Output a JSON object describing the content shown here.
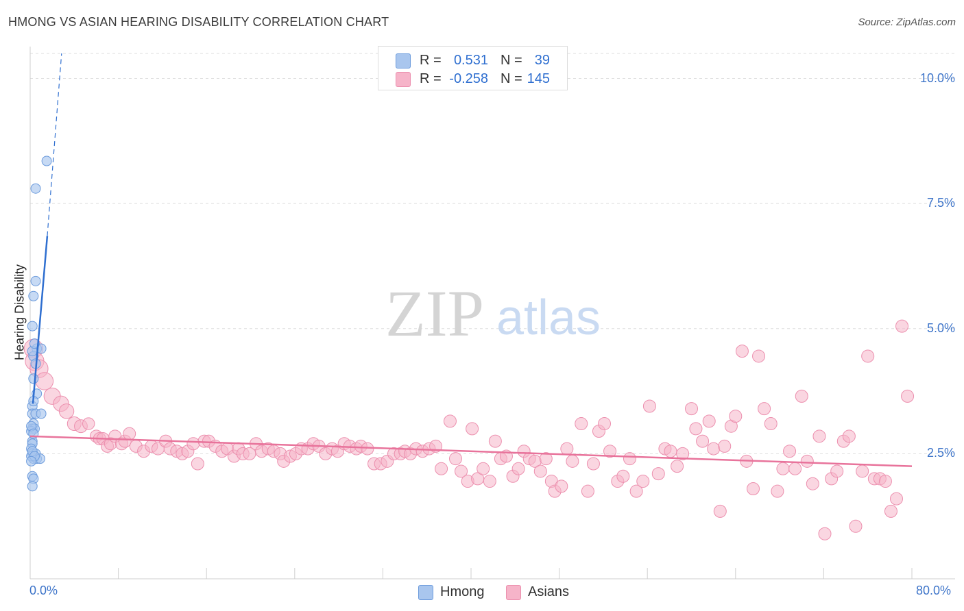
{
  "title": "HMONG VS ASIAN HEARING DISABILITY CORRELATION CHART",
  "source": "Source: ZipAtlas.com",
  "watermark": {
    "zip": "ZIP",
    "atlas": "atlas"
  },
  "legend": {
    "rows": [
      {
        "r_label": "R =",
        "r_value": "0.531",
        "n_label": "N =",
        "n_value": "39"
      },
      {
        "r_label": "R =",
        "r_value": "-0.258",
        "n_label": "N =",
        "n_value": "145"
      }
    ]
  },
  "bottom_legend": {
    "hmong": "Hmong",
    "asians": "Asians"
  },
  "colors": {
    "hmong_fill": "#a9c6ee",
    "hmong_stroke": "#6c9bdc",
    "hmong_line": "#2f6fd0",
    "asian_fill": "#f6b4c9",
    "asian_stroke": "#ec8fae",
    "asian_line": "#e8739b",
    "axis_text": "#3d74c9",
    "grid": "#dedede"
  },
  "chart_data": {
    "type": "scatter",
    "title": "HMONG VS ASIAN HEARING DISABILITY CORRELATION CHART",
    "xlabel": "",
    "ylabel": "Hearing Disability",
    "xlim": [
      0,
      80
    ],
    "ylim": [
      0,
      10.5
    ],
    "x_tick_labels": [
      "0.0%",
      "80.0%"
    ],
    "y_ticks": [
      2.5,
      5.0,
      7.5,
      10.0
    ],
    "y_tick_labels": [
      "2.5%",
      "5.0%",
      "7.5%",
      "10.0%"
    ],
    "legend_position": "top-center",
    "series": [
      {
        "name": "Hmong",
        "r": 0.531,
        "n": 39,
        "trend": {
          "x": [
            0.25,
            1.55
          ],
          "y": [
            3.5,
            6.85
          ],
          "dash_to": [
            2.85,
            10.5
          ]
        },
        "points": [
          [
            1.5,
            8.35
          ],
          [
            0.5,
            7.8
          ],
          [
            0.5,
            5.95
          ],
          [
            0.3,
            5.65
          ],
          [
            0.2,
            5.05
          ],
          [
            0.6,
            4.6
          ],
          [
            1.0,
            4.6
          ],
          [
            0.3,
            4.45
          ],
          [
            0.5,
            4.3
          ],
          [
            0.3,
            4.0
          ],
          [
            0.6,
            3.7
          ],
          [
            0.2,
            3.45
          ],
          [
            0.2,
            3.3
          ],
          [
            0.5,
            3.3
          ],
          [
            1.0,
            3.3
          ],
          [
            0.3,
            3.1
          ],
          [
            0.2,
            3.0
          ],
          [
            0.4,
            3.0
          ],
          [
            0.1,
            2.95
          ],
          [
            0.2,
            2.75
          ],
          [
            0.2,
            2.7
          ],
          [
            0.1,
            2.6
          ],
          [
            0.2,
            2.5
          ],
          [
            0.5,
            2.5
          ],
          [
            0.3,
            2.4
          ],
          [
            0.6,
            2.4
          ],
          [
            0.9,
            2.4
          ],
          [
            0.1,
            2.45
          ],
          [
            0.2,
            2.05
          ],
          [
            0.3,
            2.0
          ],
          [
            0.2,
            1.85
          ],
          [
            0.2,
            2.55
          ],
          [
            0.4,
            2.45
          ],
          [
            0.1,
            3.05
          ],
          [
            0.3,
            2.9
          ],
          [
            0.3,
            3.55
          ],
          [
            0.2,
            4.55
          ],
          [
            0.4,
            4.7
          ],
          [
            0.1,
            2.35
          ]
        ]
      },
      {
        "name": "Asians",
        "r": -0.258,
        "n": 145,
        "trend": {
          "x": [
            0,
            80
          ],
          "y": [
            2.85,
            2.25
          ]
        },
        "points": [
          [
            0.3,
            4.6
          ],
          [
            0.4,
            4.35
          ],
          [
            0.8,
            4.2
          ],
          [
            1.3,
            3.95
          ],
          [
            2.0,
            3.65
          ],
          [
            2.8,
            3.5
          ],
          [
            3.3,
            3.35
          ],
          [
            4.0,
            3.1
          ],
          [
            4.6,
            3.05
          ],
          [
            5.3,
            3.1
          ],
          [
            6.0,
            2.85
          ],
          [
            6.3,
            2.8
          ],
          [
            6.6,
            2.8
          ],
          [
            7.0,
            2.65
          ],
          [
            7.3,
            2.7
          ],
          [
            7.7,
            2.85
          ],
          [
            8.3,
            2.7
          ],
          [
            8.6,
            2.75
          ],
          [
            9.0,
            2.9
          ],
          [
            9.6,
            2.65
          ],
          [
            10.3,
            2.55
          ],
          [
            11.0,
            2.65
          ],
          [
            11.6,
            2.6
          ],
          [
            12.3,
            2.75
          ],
          [
            12.7,
            2.6
          ],
          [
            13.3,
            2.55
          ],
          [
            13.8,
            2.5
          ],
          [
            14.3,
            2.55
          ],
          [
            14.8,
            2.7
          ],
          [
            15.2,
            2.3
          ],
          [
            15.8,
            2.75
          ],
          [
            16.2,
            2.75
          ],
          [
            16.8,
            2.65
          ],
          [
            17.4,
            2.55
          ],
          [
            17.9,
            2.6
          ],
          [
            18.5,
            2.45
          ],
          [
            18.9,
            2.6
          ],
          [
            19.3,
            2.5
          ],
          [
            19.9,
            2.5
          ],
          [
            20.5,
            2.7
          ],
          [
            21.0,
            2.55
          ],
          [
            21.6,
            2.6
          ],
          [
            22.1,
            2.55
          ],
          [
            22.7,
            2.5
          ],
          [
            23.0,
            2.35
          ],
          [
            23.6,
            2.45
          ],
          [
            24.1,
            2.5
          ],
          [
            24.6,
            2.6
          ],
          [
            25.2,
            2.6
          ],
          [
            25.7,
            2.7
          ],
          [
            26.2,
            2.65
          ],
          [
            26.8,
            2.5
          ],
          [
            27.4,
            2.6
          ],
          [
            27.9,
            2.55
          ],
          [
            28.5,
            2.7
          ],
          [
            29.0,
            2.65
          ],
          [
            29.6,
            2.6
          ],
          [
            30.0,
            2.65
          ],
          [
            30.6,
            2.6
          ],
          [
            31.2,
            2.3
          ],
          [
            31.8,
            2.3
          ],
          [
            32.4,
            2.35
          ],
          [
            33.0,
            2.5
          ],
          [
            33.6,
            2.5
          ],
          [
            34.0,
            2.55
          ],
          [
            34.5,
            2.5
          ],
          [
            35.0,
            2.6
          ],
          [
            35.6,
            2.55
          ],
          [
            36.2,
            2.6
          ],
          [
            36.8,
            2.65
          ],
          [
            37.3,
            2.2
          ],
          [
            38.1,
            3.15
          ],
          [
            38.6,
            2.4
          ],
          [
            39.1,
            2.15
          ],
          [
            39.7,
            1.95
          ],
          [
            40.1,
            3.0
          ],
          [
            40.6,
            2.0
          ],
          [
            41.1,
            2.2
          ],
          [
            41.7,
            1.95
          ],
          [
            42.2,
            2.75
          ],
          [
            42.7,
            2.4
          ],
          [
            43.2,
            2.45
          ],
          [
            43.8,
            2.05
          ],
          [
            44.3,
            2.2
          ],
          [
            44.8,
            2.55
          ],
          [
            45.3,
            2.4
          ],
          [
            45.8,
            2.35
          ],
          [
            46.3,
            2.15
          ],
          [
            46.8,
            2.4
          ],
          [
            47.3,
            1.95
          ],
          [
            47.6,
            1.75
          ],
          [
            48.2,
            1.85
          ],
          [
            48.7,
            2.6
          ],
          [
            49.2,
            2.35
          ],
          [
            50.0,
            3.1
          ],
          [
            50.6,
            1.75
          ],
          [
            51.1,
            2.3
          ],
          [
            51.6,
            2.95
          ],
          [
            52.1,
            3.1
          ],
          [
            52.6,
            2.55
          ],
          [
            53.3,
            1.95
          ],
          [
            53.8,
            2.05
          ],
          [
            54.4,
            2.4
          ],
          [
            55.0,
            1.75
          ],
          [
            55.6,
            1.95
          ],
          [
            56.2,
            3.45
          ],
          [
            57.0,
            2.1
          ],
          [
            57.6,
            2.6
          ],
          [
            58.1,
            2.55
          ],
          [
            58.7,
            2.25
          ],
          [
            59.2,
            2.5
          ],
          [
            60.0,
            3.4
          ],
          [
            60.4,
            3.0
          ],
          [
            61.0,
            2.75
          ],
          [
            61.6,
            3.15
          ],
          [
            62.0,
            2.6
          ],
          [
            62.6,
            1.35
          ],
          [
            63.0,
            2.65
          ],
          [
            63.6,
            3.05
          ],
          [
            64.0,
            3.25
          ],
          [
            64.6,
            4.55
          ],
          [
            65.0,
            2.35
          ],
          [
            65.6,
            1.8
          ],
          [
            66.1,
            4.45
          ],
          [
            66.6,
            3.4
          ],
          [
            67.2,
            3.1
          ],
          [
            67.8,
            1.75
          ],
          [
            68.3,
            2.2
          ],
          [
            68.9,
            2.55
          ],
          [
            69.4,
            2.2
          ],
          [
            70.0,
            3.65
          ],
          [
            70.5,
            2.35
          ],
          [
            71.0,
            1.9
          ],
          [
            71.6,
            2.85
          ],
          [
            72.1,
            0.9
          ],
          [
            72.7,
            2.0
          ],
          [
            73.2,
            2.15
          ],
          [
            73.8,
            2.75
          ],
          [
            74.3,
            2.85
          ],
          [
            74.9,
            1.05
          ],
          [
            75.5,
            2.15
          ],
          [
            76.0,
            4.45
          ],
          [
            76.6,
            2.0
          ],
          [
            77.1,
            2.0
          ],
          [
            77.6,
            1.95
          ],
          [
            78.1,
            1.35
          ],
          [
            78.6,
            1.6
          ],
          [
            79.1,
            5.05
          ],
          [
            79.6,
            3.65
          ]
        ]
      }
    ]
  }
}
